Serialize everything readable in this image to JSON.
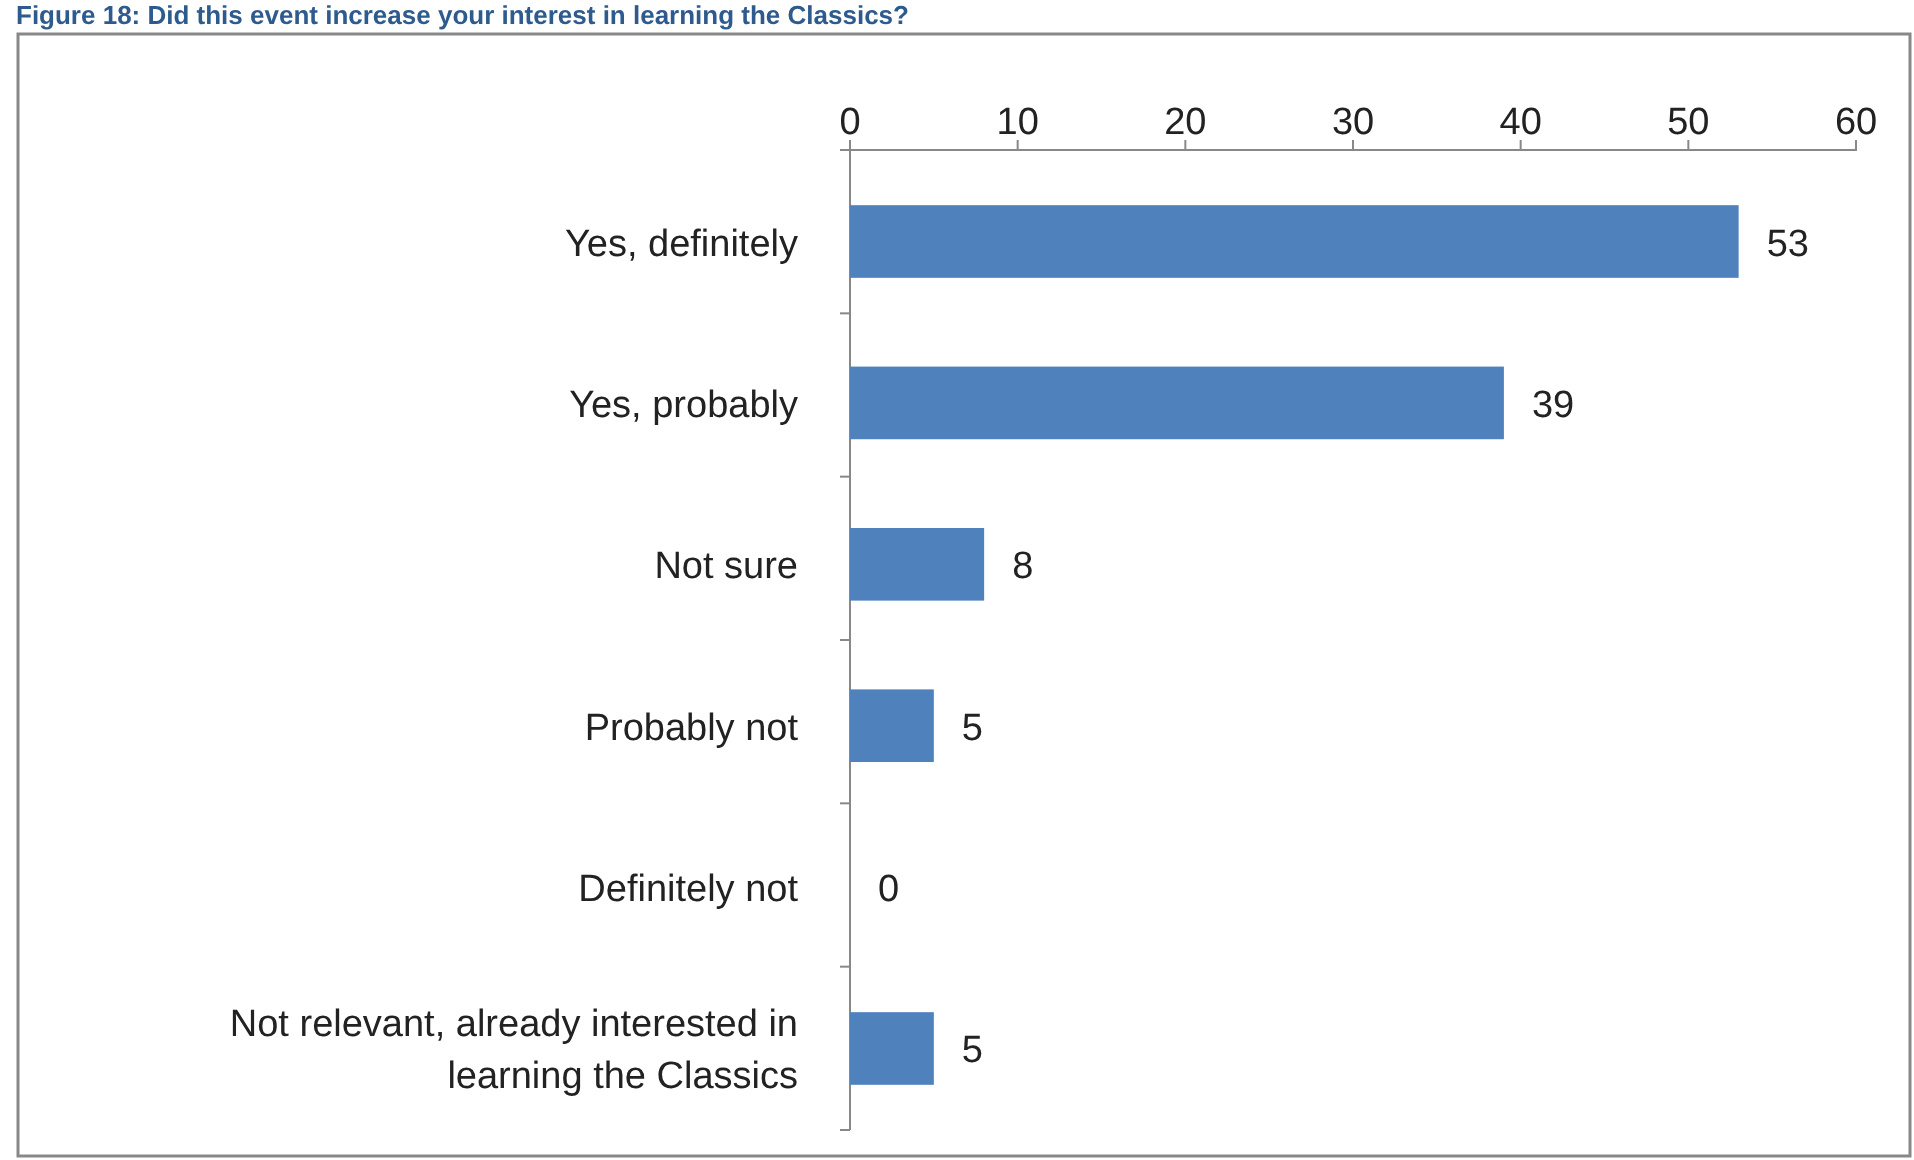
{
  "chart_data": {
    "type": "bar",
    "orientation": "horizontal",
    "title": "Figure 18: Did this event increase your interest in learning the Classics?",
    "categories": [
      "Yes, definitely",
      "Yes, probably",
      "Not sure",
      "Probably not",
      "Definitely not",
      "Not relevant, already interested in learning the Classics"
    ],
    "values": [
      53,
      39,
      8,
      5,
      0,
      5
    ],
    "color": "#4f81bd",
    "xlim": [
      0,
      60
    ],
    "xticks": [
      0,
      10,
      20,
      30,
      40,
      50,
      60
    ],
    "data_labels": true,
    "grid": false
  }
}
